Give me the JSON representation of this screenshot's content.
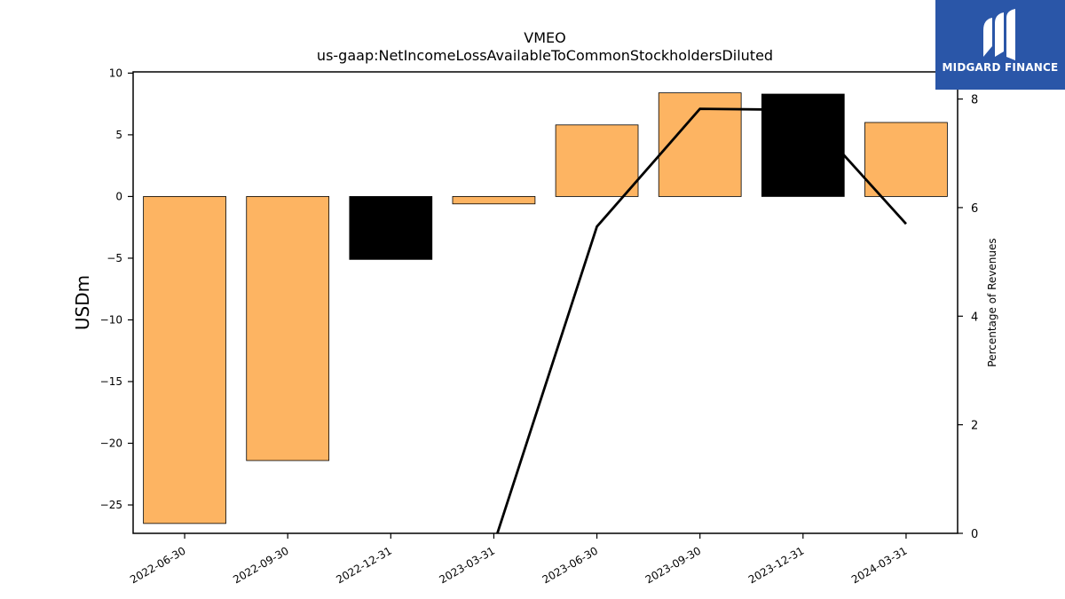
{
  "chart_data": {
    "type": "bar",
    "title": "VMEO",
    "subtitle": "us-gaap:NetIncomeLossAvailableToCommonStockholdersDiluted",
    "ylabel": "USDm",
    "y2label": "Percentage of Revenues",
    "categories": [
      "2022-06-30",
      "2022-09-30",
      "2022-12-31",
      "2023-03-31",
      "2023-06-30",
      "2023-09-30",
      "2023-12-31",
      "2024-03-31"
    ],
    "values": [
      -26.5,
      -21.4,
      -5.1,
      -0.6,
      5.8,
      8.4,
      8.3,
      6.0
    ],
    "bar_colors": [
      "#fdb462",
      "#fdb462",
      "#000000",
      "#fdb462",
      "#fdb462",
      "#fdb462",
      "#000000",
      "#fdb462"
    ],
    "ylim": [
      -27.3,
      10.1
    ],
    "yticks": [
      10,
      5,
      0,
      -5,
      -10,
      -15,
      -20,
      -25
    ],
    "line_series": {
      "values": [
        null,
        null,
        null,
        -0.2,
        5.65,
        7.82,
        7.8,
        5.7
      ],
      "color": "#000000"
    },
    "y2lim": [
      0,
      8.5
    ],
    "y2ticks": [
      0,
      2,
      4,
      6,
      8
    ],
    "grid": false,
    "legend": "none"
  },
  "logo": {
    "text": "MIDGARD FINANCE",
    "color": "#2a56a8"
  }
}
